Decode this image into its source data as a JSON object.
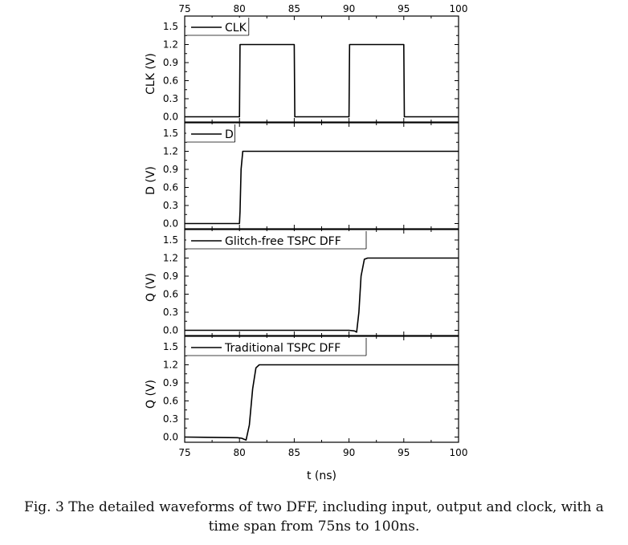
{
  "chart_data": {
    "type": "line",
    "shared_x": {
      "label": "t (ns)",
      "range": [
        75,
        100
      ],
      "ticks": [
        75,
        80,
        85,
        90,
        95,
        100
      ],
      "tick_labels": [
        "75",
        "80",
        "85",
        "90",
        "95",
        "100"
      ]
    },
    "ylim": [
      -0.1,
      1.5
    ],
    "y_ticks": [
      "0.0",
      "0.3",
      "0.6",
      "0.9",
      "1.2",
      "1.5"
    ],
    "legend_placement": "top-left",
    "panels": [
      {
        "ylabel": "CLK (V)",
        "legend": "CLK",
        "points": [
          [
            75,
            0
          ],
          [
            80,
            0
          ],
          [
            80.05,
            1.2
          ],
          [
            85,
            1.2
          ],
          [
            85.05,
            0
          ],
          [
            90,
            0
          ],
          [
            90.05,
            1.2
          ],
          [
            95,
            1.2
          ],
          [
            95.05,
            0
          ],
          [
            100,
            0
          ]
        ]
      },
      {
        "ylabel": "D (V)",
        "legend": "D",
        "points": [
          [
            75,
            0
          ],
          [
            80,
            0
          ],
          [
            80.05,
            0.2
          ],
          [
            80.15,
            0.9
          ],
          [
            80.3,
            1.2
          ],
          [
            100,
            1.2
          ]
        ]
      },
      {
        "ylabel": "Q (V)",
        "legend": "Glitch-free TSPC DFF",
        "points": [
          [
            75,
            0
          ],
          [
            90,
            0
          ],
          [
            90.5,
            -0.01
          ],
          [
            90.7,
            -0.03
          ],
          [
            90.9,
            0.3
          ],
          [
            91.1,
            0.9
          ],
          [
            91.4,
            1.18
          ],
          [
            91.7,
            1.2
          ],
          [
            100,
            1.2
          ]
        ]
      },
      {
        "ylabel": "Q (V)",
        "legend": "Traditional TSPC DFF",
        "points": [
          [
            75,
            0
          ],
          [
            79.8,
            -0.01
          ],
          [
            80.2,
            -0.02
          ],
          [
            80.6,
            -0.05
          ],
          [
            80.9,
            0.2
          ],
          [
            81.2,
            0.8
          ],
          [
            81.5,
            1.15
          ],
          [
            81.8,
            1.2
          ],
          [
            100,
            1.2
          ]
        ]
      }
    ]
  },
  "caption": {
    "line1": "Fig. 3 The detailed waveforms of two DFF, including input, output and clock, with a",
    "line2": "time span from 75ns to 100ns."
  }
}
